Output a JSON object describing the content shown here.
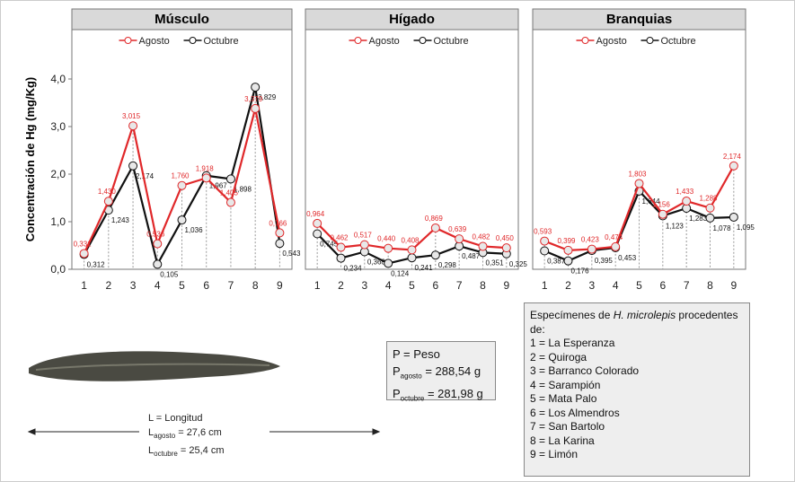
{
  "chart_data": [
    {
      "type": "line",
      "title": "Músculo",
      "y_label": "Concentración de Hg (mg/Kg)",
      "categories": [
        "1",
        "2",
        "3",
        "4",
        "5",
        "6",
        "7",
        "8",
        "9"
      ],
      "ylim": [
        0,
        5
      ],
      "yticks": [
        {
          "value": 0,
          "label": "0,0"
        },
        {
          "value": 1,
          "label": "1,0"
        },
        {
          "value": 2,
          "label": "2,0"
        },
        {
          "value": 3,
          "label": "3,0"
        },
        {
          "value": 4,
          "label": "4,0"
        }
      ],
      "series": [
        {
          "name": "Agosto",
          "color": "#e0282a",
          "values": [
            0.331,
            1.43,
            3.015,
            0.536,
            1.76,
            1.918,
            1.405,
            3.379,
            0.766
          ],
          "value_labels": [
            "0,331",
            "1,430",
            "3,015",
            "0,536",
            "1,760",
            "1,918",
            "1,405",
            "3,379",
            "0,766"
          ]
        },
        {
          "name": "Octubre",
          "color": "#111111",
          "values": [
            0.312,
            1.243,
            2.174,
            0.105,
            1.036,
            1.967,
            1.898,
            3.829,
            0.543
          ],
          "value_labels": [
            "0,312",
            "1,243",
            "2,174",
            "0,105",
            "1,036",
            "1,967",
            "1,898",
            "3,829",
            "0,543"
          ]
        }
      ]
    },
    {
      "type": "line",
      "title": "Hígado",
      "categories": [
        "1",
        "2",
        "3",
        "4",
        "5",
        "6",
        "7",
        "8",
        "9"
      ],
      "ylim": [
        0,
        5
      ],
      "series": [
        {
          "name": "Agosto",
          "color": "#e0282a",
          "values": [
            0.964,
            0.462,
            0.517,
            0.44,
            0.408,
            0.869,
            0.639,
            0.482,
            0.45
          ],
          "value_labels": [
            "0,964",
            "0,462",
            "0,517",
            "0,440",
            "0,408",
            "0,869",
            "0,639",
            "0,482",
            "0,450"
          ]
        },
        {
          "name": "Octubre",
          "color": "#111111",
          "values": [
            0.745,
            0.234,
            0.368,
            0.124,
            0.241,
            0.298,
            0.487,
            0.351,
            0.325
          ],
          "value_labels": [
            "0,745",
            "0,234",
            "0,368",
            "0,124",
            "0,241",
            "0,298",
            "0,487",
            "0,351",
            "0,325"
          ]
        }
      ]
    },
    {
      "type": "line",
      "title": "Branquias",
      "categories": [
        "1",
        "2",
        "3",
        "4",
        "5",
        "6",
        "7",
        "8",
        "9"
      ],
      "ylim": [
        0,
        5
      ],
      "series": [
        {
          "name": "Agosto",
          "color": "#e0282a",
          "values": [
            0.593,
            0.399,
            0.423,
            0.474,
            1.803,
            1.156,
            1.433,
            1.288,
            2.174
          ],
          "value_labels": [
            "0,593",
            "0,399",
            "0,423",
            "0,474",
            "1,803",
            "1,156",
            "1,433",
            "1,288",
            "2,174"
          ]
        },
        {
          "name": "Octubre",
          "color": "#111111",
          "values": [
            0.387,
            0.176,
            0.395,
            0.453,
            1.644,
            1.123,
            1.283,
            1.078,
            1.095
          ],
          "value_labels": [
            "0,387",
            "0,176",
            "0,395",
            "0,453",
            "1,644",
            "1,123",
            "1,283",
            "1,078",
            "1,095"
          ]
        }
      ]
    }
  ],
  "specimens": {
    "heading_prefix": "Especímenes de ",
    "heading_italic": "H. microlepis",
    "heading_suffix": " procedentes de:",
    "items": [
      "1 = La Esperanza",
      "2 = Quiroga",
      "3 = Barranco Colorado",
      "4 = Sarampión",
      "5 = Mata Palo",
      "6 = Los Almendros",
      "7 = San Bartolo",
      "8 = La Karina",
      "9 = Limón"
    ]
  },
  "weight": {
    "title": "P = Peso",
    "august": {
      "symbol": "P",
      "subscript": "agosto",
      "text": " = 288,54 g"
    },
    "october": {
      "symbol": "P",
      "subscript": "octubre",
      "text": " = 281,98 g"
    }
  },
  "length": {
    "title": "L = Longitud",
    "august": {
      "symbol": "L",
      "subscript": "agosto",
      "text": " = 27,6 cm"
    },
    "october": {
      "symbol": "L",
      "subscript": "octubre",
      "text": " = 25,4 cm"
    }
  }
}
